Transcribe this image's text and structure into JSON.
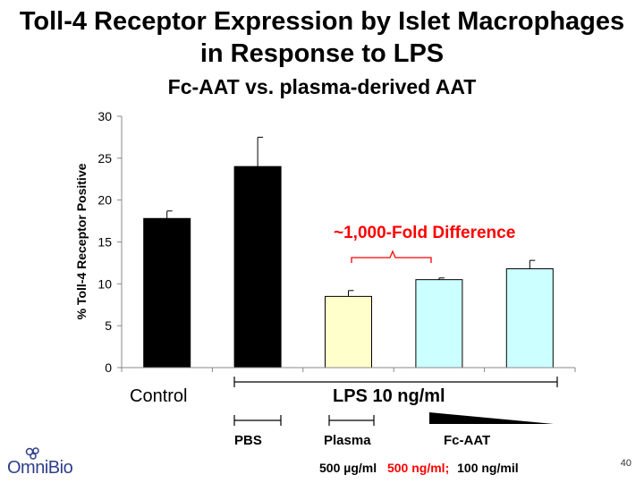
{
  "titles": {
    "line1": "Toll-4 Receptor Expression by Islet Macrophages",
    "line2": "in Response to LPS",
    "subtitle": "Fc-AAT vs. plasma-derived AAT"
  },
  "chart_data": {
    "type": "bar",
    "ylabel": "% Toll-4 Receptor Positive",
    "ylim": [
      0,
      30
    ],
    "yticks": [
      "0",
      "5",
      "10",
      "15",
      "20",
      "25",
      "30"
    ],
    "bars": [
      {
        "value": 17.8,
        "error": 0.9,
        "color": "#000000"
      },
      {
        "value": 24.0,
        "error": 3.5,
        "color": "#000000"
      },
      {
        "value": 8.5,
        "error": 0.7,
        "color": "#ffffcc"
      },
      {
        "value": 10.5,
        "error": 0.2,
        "color": "#ccffff"
      },
      {
        "value": 11.8,
        "error": 1.0,
        "color": "#ccffff"
      }
    ],
    "annotation": "~1,000-Fold Difference",
    "annotation_color": "#ff0000"
  },
  "labels": {
    "control": "Control",
    "lps": "LPS 10 ng/ml",
    "pbs": "PBS",
    "plasma": "Plasma",
    "fc_aat": "Fc-AAT",
    "dose_plasma": "500 µg/ml",
    "dose_fc_high": "500 ng/ml;",
    "dose_fc_low": "100 ng/mil"
  },
  "logo": {
    "text": "OmniBio",
    "color": "#2f3e8c"
  },
  "page_number": "40"
}
